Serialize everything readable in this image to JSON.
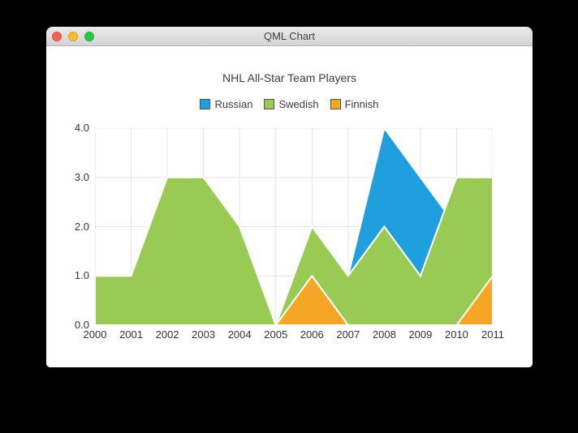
{
  "window": {
    "title": "QML Chart",
    "controls": {
      "close": "close",
      "minimize": "minimize",
      "zoom": "zoom"
    }
  },
  "chart_data": {
    "type": "area",
    "title": "NHL All-Star Team Players",
    "x": [
      2000,
      2001,
      2002,
      2003,
      2004,
      2005,
      2006,
      2007,
      2008,
      2009,
      2010,
      2011
    ],
    "x_tick_labels": [
      "2000",
      "2001",
      "2002",
      "2003",
      "2004",
      "2005",
      "2006",
      "2007",
      "2008",
      "2009",
      "2010",
      "2011"
    ],
    "y_tick_labels": [
      "0.0",
      "1.0",
      "2.0",
      "3.0",
      "4.0"
    ],
    "xlim": [
      2000,
      2011
    ],
    "ylim": [
      0,
      4
    ],
    "grid": true,
    "grid_color": "#e4e4e4",
    "area_border_color": "#ffffff",
    "legend_position": "top",
    "series": [
      {
        "name": "Russian",
        "color": "#209fdf",
        "values": [
          1,
          1,
          1,
          1,
          1,
          0,
          1,
          1,
          4,
          3,
          2,
          1
        ]
      },
      {
        "name": "Swedish",
        "color": "#99ca53",
        "values": [
          1,
          1,
          3,
          3,
          2,
          0,
          2,
          1,
          2,
          1,
          3,
          3
        ]
      },
      {
        "name": "Finnish",
        "color": "#f6a625",
        "values": [
          0,
          0,
          0,
          0,
          0,
          0,
          1,
          0,
          0,
          0,
          0,
          1
        ]
      }
    ]
  }
}
